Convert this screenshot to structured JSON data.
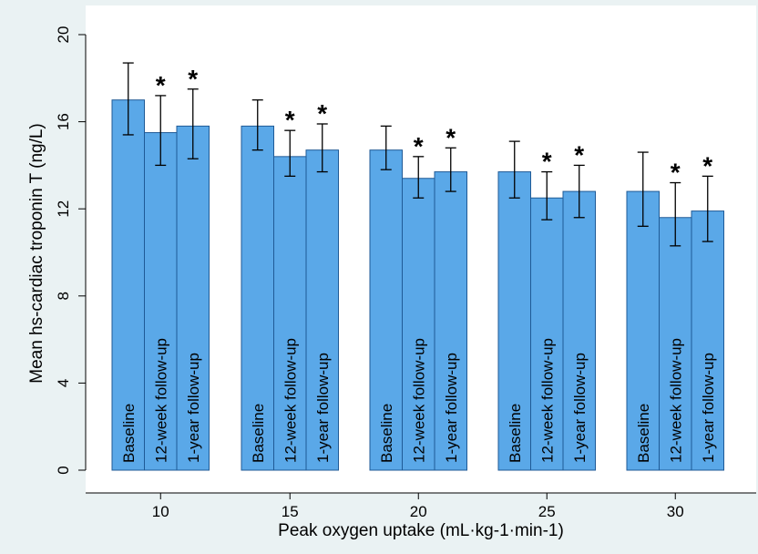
{
  "chart_data": {
    "type": "bar",
    "xlabel": "Peak oxygen uptake (mL·kg-1·min-1)",
    "ylabel": "Mean hs-cardiac troponin T (ng/L)",
    "ylim": [
      0,
      20
    ],
    "yticks": [
      "0",
      "4",
      "8",
      "12",
      "16",
      "20"
    ],
    "categories": [
      "10",
      "15",
      "20",
      "25",
      "30"
    ],
    "series": [
      {
        "name": "Baseline",
        "values": [
          17.0,
          15.8,
          14.7,
          13.7,
          12.8
        ],
        "lower": [
          15.4,
          14.7,
          13.8,
          12.5,
          11.2
        ],
        "upper": [
          18.7,
          17.0,
          15.8,
          15.1,
          14.6
        ],
        "significant": [
          false,
          false,
          false,
          false,
          false
        ]
      },
      {
        "name": "12-week follow-up",
        "values": [
          15.5,
          14.4,
          13.4,
          12.5,
          11.6
        ],
        "lower": [
          14.0,
          13.5,
          12.5,
          11.5,
          10.3
        ],
        "upper": [
          17.2,
          15.6,
          14.4,
          13.7,
          13.2
        ],
        "significant": [
          true,
          true,
          true,
          true,
          true
        ]
      },
      {
        "name": "1-year follow-up",
        "values": [
          15.8,
          14.7,
          13.7,
          12.8,
          11.9
        ],
        "lower": [
          14.3,
          13.7,
          12.8,
          11.6,
          10.5
        ],
        "upper": [
          17.5,
          15.9,
          14.8,
          14.0,
          13.5
        ],
        "significant": [
          true,
          true,
          true,
          true,
          true
        ]
      }
    ],
    "significance_marker": "*",
    "bar_color": "#5aa8e8",
    "grid": false,
    "legend": "none"
  }
}
